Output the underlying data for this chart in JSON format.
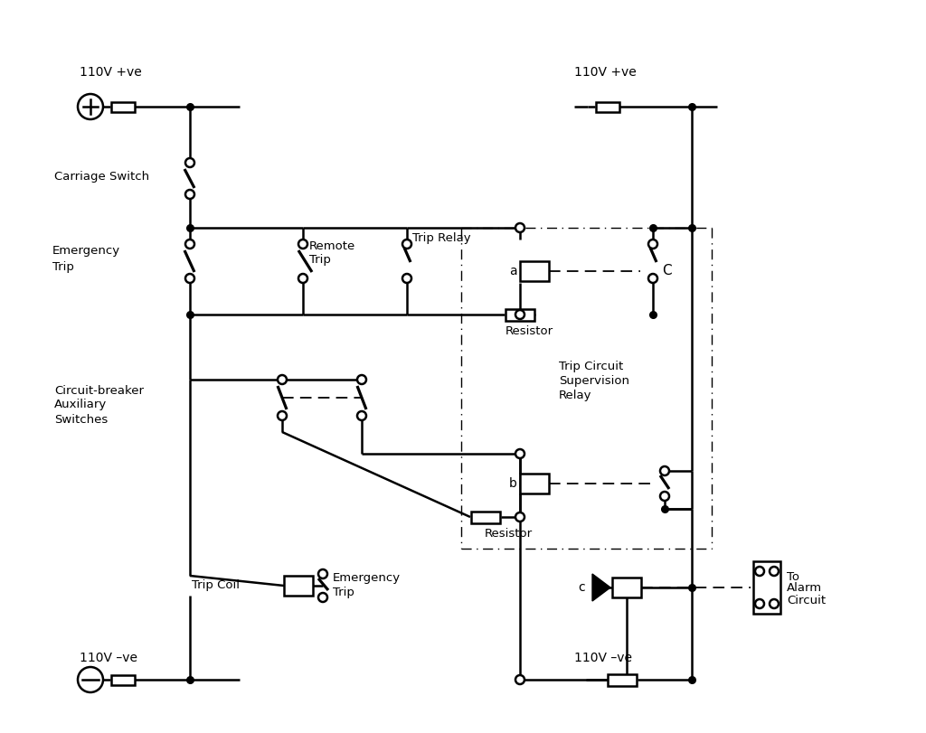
{
  "bg": "#ffffff",
  "lc": "#000000",
  "lw": 1.8,
  "figsize": [
    10.24,
    8.11
  ],
  "dpi": 100,
  "labels": {
    "v_pos_left": "110V +ve",
    "v_pos_right": "110V +ve",
    "v_neg_left": "110V –ve",
    "v_neg_right": "110V –ve",
    "carriage": "Carriage Switch",
    "emerg1": [
      "Emergency",
      "Trip"
    ],
    "remote": [
      "Remote",
      "Trip"
    ],
    "trip_relay": "Trip Relay",
    "resistor": "Resistor",
    "cb": [
      "Circuit-breaker",
      "Auxiliary",
      "Switches"
    ],
    "trip_coil": "Trip Coil",
    "emerg2": [
      "Emergency",
      "Trip"
    ],
    "supervision": [
      "Trip Circuit",
      "Supervision",
      "Relay"
    ],
    "alarm": [
      "To",
      "Alarm",
      "Circuit"
    ],
    "a": "a",
    "b": "b",
    "c": "c",
    "C": "C"
  }
}
